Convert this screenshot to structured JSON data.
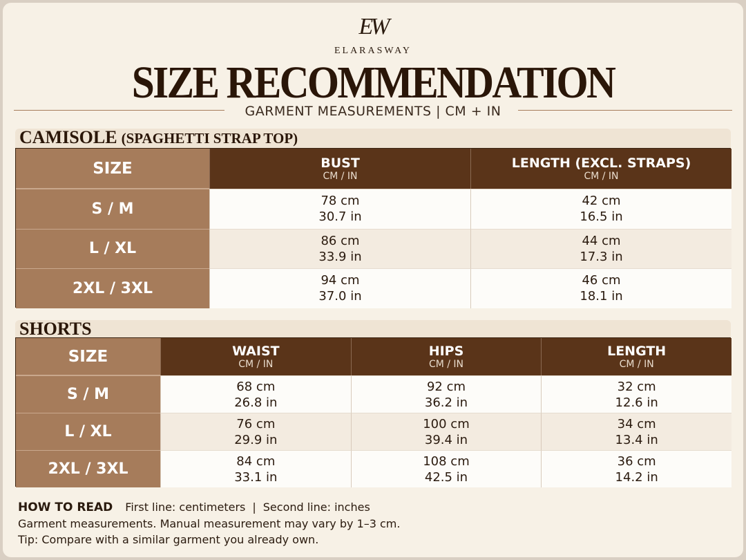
{
  "header": {
    "logo": "EW",
    "brand": "ELARASWAY",
    "title": "SIZE RECOMMENDATION",
    "subtitle": "GARMENT MEASUREMENTS | CM + IN"
  },
  "tables": [
    {
      "title": "CAMISOLE",
      "note": "(SPAGHETTI STRAP TOP)",
      "columns": [
        {
          "label": "SIZE"
        },
        {
          "label": "BUST",
          "unit": "CM / IN"
        },
        {
          "label": "LENGTH (EXCL. STRAPS)",
          "unit": "CM / IN"
        }
      ],
      "rows": [
        {
          "size": "S / M",
          "cells": [
            [
              "78 cm",
              "30.7 in"
            ],
            [
              "42 cm",
              "16.5 in"
            ]
          ]
        },
        {
          "size": "L / XL",
          "cells": [
            [
              "86 cm",
              "33.9 in"
            ],
            [
              "44 cm",
              "17.3 in"
            ]
          ]
        },
        {
          "size": "2XL / 3XL",
          "cells": [
            [
              "94 cm",
              "37.0 in"
            ],
            [
              "46 cm",
              "18.1 in"
            ]
          ]
        }
      ]
    },
    {
      "title": "SHORTS",
      "columns": [
        {
          "label": "SIZE"
        },
        {
          "label": "WAIST",
          "unit": "CM / IN"
        },
        {
          "label": "HIPS",
          "unit": "CM / IN"
        },
        {
          "label": "LENGTH",
          "unit": "CM / IN"
        }
      ],
      "rows": [
        {
          "size": "S / M",
          "cells": [
            [
              "68 cm",
              "26.8 in"
            ],
            [
              "92 cm",
              "36.2 in"
            ],
            [
              "32 cm",
              "12.6 in"
            ]
          ]
        },
        {
          "size": "L / XL",
          "cells": [
            [
              "76 cm",
              "29.9 in"
            ],
            [
              "100 cm",
              "39.4 in"
            ],
            [
              "34 cm",
              "13.4 in"
            ]
          ]
        },
        {
          "size": "2XL / 3XL",
          "cells": [
            [
              "84 cm",
              "33.1 in"
            ],
            [
              "108 cm",
              "42.5 in"
            ],
            [
              "36 cm",
              "14.2 in"
            ]
          ]
        }
      ]
    }
  ],
  "footer": {
    "label": "HOW TO READ",
    "line1": [
      "First line: centimeters",
      "|",
      "Second line: inches"
    ],
    "lines": [
      "Garment measurements. Manual measurement may vary by 1–3 cm.",
      "Tip: Compare with a similar garment you already own."
    ]
  }
}
